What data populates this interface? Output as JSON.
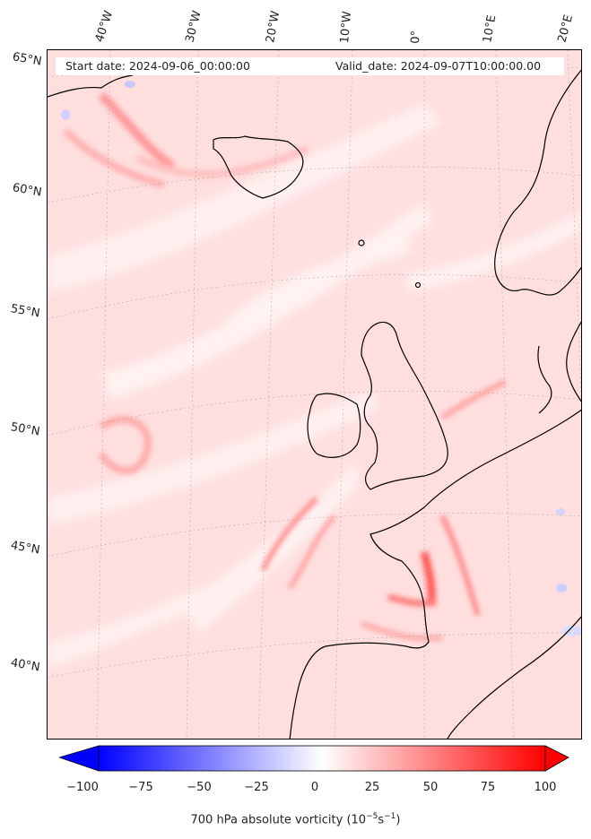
{
  "header": {
    "start_label": "Start date: 2024-09-06_00:00:00",
    "valid_label": "Valid_date: 2024-09-07T10:00:00.00"
  },
  "longitude_labels": [
    "40°W",
    "30°W",
    "20°W",
    "10°W",
    "0°",
    "10°E",
    "20°E"
  ],
  "latitude_labels": [
    "65°N",
    "60°N",
    "55°N",
    "50°N",
    "45°N",
    "40°N"
  ],
  "colorbar": {
    "ticks": [
      "−100",
      "−75",
      "−50",
      "−25",
      "0",
      "25",
      "50",
      "75",
      "100"
    ],
    "label": "700 hPa absolute vorticity (10",
    "label_exp1": "−5",
    "label_mid": "s",
    "label_exp2": "−1",
    "label_end": ")",
    "min": -100,
    "max": 100,
    "extend": "both",
    "cmap": "bwr",
    "low_color": "#0000ff",
    "mid_color": "#ffffff",
    "high_color": "#ff0000"
  },
  "map": {
    "field": "700 hPa absolute vorticity",
    "background_color": "#ffe0e0",
    "coastline_color": "#000000",
    "gridline_color": "#aaaaaa"
  }
}
